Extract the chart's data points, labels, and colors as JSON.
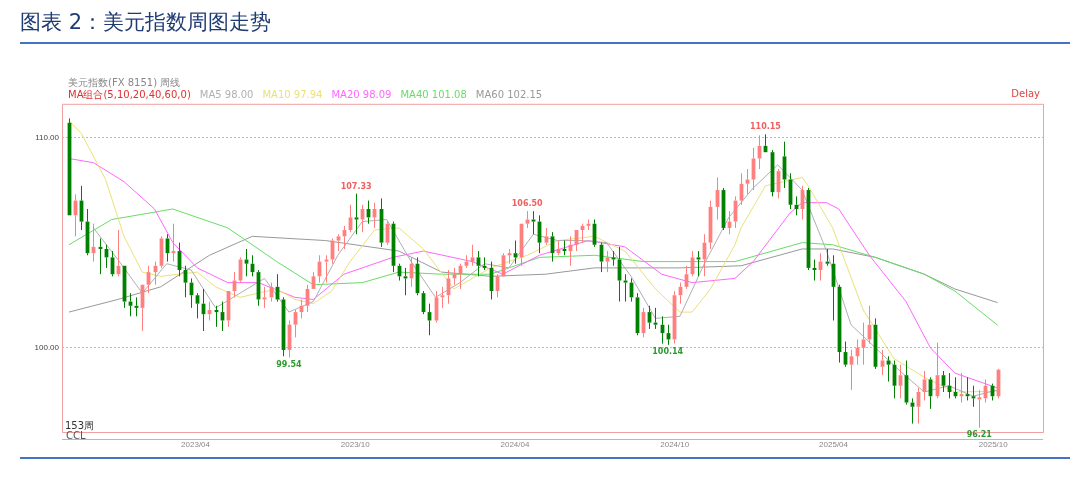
{
  "chart_data": {
    "type": "candlestick",
    "title": "图表 2：美元指数周图走势",
    "subtitle": "美元指数(FX 8151) 周线",
    "legend_title": "MA组合(5,10,20,40,60,0)",
    "x": [
      "2022-11-07",
      "2022-11-14",
      "2022-11-21",
      "2022-11-28",
      "2022-12-05",
      "2022-12-12",
      "2022-12-19",
      "2022-12-26",
      "2023-01-02",
      "2023-01-09",
      "2023-01-16",
      "2023-01-23",
      "2023-01-30",
      "2023-02-06",
      "2023-02-13",
      "2023-02-20",
      "2023-02-27",
      "2023-03-06",
      "2023-03-13",
      "2023-03-20",
      "2023-03-27",
      "2023-04-03",
      "2023-04-10",
      "2023-04-17",
      "2023-04-24",
      "2023-05-01",
      "2023-05-08",
      "2023-05-15",
      "2023-05-22",
      "2023-05-29",
      "2023-06-05",
      "2023-06-12",
      "2023-06-19",
      "2023-06-26",
      "2023-07-03",
      "2023-07-10",
      "2023-07-17",
      "2023-07-24",
      "2023-07-31",
      "2023-08-07",
      "2023-08-14",
      "2023-08-21",
      "2023-08-28",
      "2023-09-04",
      "2023-09-11",
      "2023-09-18",
      "2023-09-25",
      "2023-10-02",
      "2023-10-09",
      "2023-10-16",
      "2023-10-23",
      "2023-10-30",
      "2023-11-06",
      "2023-11-13",
      "2023-11-20",
      "2023-11-27",
      "2023-12-04",
      "2023-12-11",
      "2023-12-18",
      "2023-12-25",
      "2024-01-01",
      "2024-01-08",
      "2024-01-15",
      "2024-01-22",
      "2024-01-29",
      "2024-02-05",
      "2024-02-12",
      "2024-02-19",
      "2024-02-26",
      "2024-03-04",
      "2024-03-11",
      "2024-03-18",
      "2024-03-25",
      "2024-04-01",
      "2024-04-08",
      "2024-04-15",
      "2024-04-22",
      "2024-04-29",
      "2024-05-06",
      "2024-05-13",
      "2024-05-20",
      "2024-05-27",
      "2024-06-03",
      "2024-06-10",
      "2024-06-17",
      "2024-06-24",
      "2024-07-01",
      "2024-07-08",
      "2024-07-15",
      "2024-07-22",
      "2024-07-29",
      "2024-08-05",
      "2024-08-12",
      "2024-08-19",
      "2024-08-26",
      "2024-09-02",
      "2024-09-09",
      "2024-09-16",
      "2024-09-23",
      "2024-09-30",
      "2024-10-07",
      "2024-10-14",
      "2024-10-21",
      "2024-10-28",
      "2024-11-04",
      "2024-11-11",
      "2024-11-18",
      "2024-11-25",
      "2024-12-02",
      "2024-12-09",
      "2024-12-16",
      "2024-12-23",
      "2024-12-30",
      "2025-01-06",
      "2025-01-13",
      "2025-01-20",
      "2025-01-27",
      "2025-02-03",
      "2025-02-10",
      "2025-02-17",
      "2025-02-24",
      "2025-03-03",
      "2025-03-10",
      "2025-03-17",
      "2025-03-24",
      "2025-03-31",
      "2025-04-07",
      "2025-04-14",
      "2025-04-21",
      "2025-04-28",
      "2025-05-05",
      "2025-05-12",
      "2025-05-19",
      "2025-05-26",
      "2025-06-02",
      "2025-06-09",
      "2025-06-16",
      "2025-06-23",
      "2025-06-30",
      "2025-07-07",
      "2025-07-14",
      "2025-07-21",
      "2025-07-28",
      "2025-08-04",
      "2025-08-11",
      "2025-08-18",
      "2025-08-25",
      "2025-09-01",
      "2025-09-08",
      "2025-09-15",
      "2025-09-22",
      "2025-09-29",
      "2025-10-06"
    ],
    "ohlc": [
      [
        110.7,
        110.9,
        106.3,
        106.3
      ],
      [
        106.3,
        107.3,
        105.3,
        107.0
      ],
      [
        107.0,
        107.7,
        105.6,
        106.0
      ],
      [
        106.0,
        106.6,
        104.4,
        104.5
      ],
      [
        104.5,
        105.9,
        104.1,
        104.8
      ],
      [
        104.8,
        105.2,
        103.5,
        104.7
      ],
      [
        104.7,
        104.9,
        103.8,
        104.3
      ],
      [
        104.3,
        104.6,
        103.4,
        103.5
      ],
      [
        103.5,
        105.6,
        103.4,
        103.9
      ],
      [
        103.9,
        103.9,
        101.9,
        102.2
      ],
      [
        102.2,
        102.6,
        101.5,
        102.0
      ],
      [
        102.0,
        102.4,
        101.5,
        101.9
      ],
      [
        101.9,
        103.0,
        100.8,
        103.0
      ],
      [
        103.0,
        103.9,
        102.6,
        103.6
      ],
      [
        103.6,
        104.1,
        103.0,
        103.9
      ],
      [
        103.9,
        105.3,
        103.8,
        105.2
      ],
      [
        105.2,
        105.4,
        104.1,
        104.5
      ],
      [
        104.5,
        105.9,
        104.1,
        104.6
      ],
      [
        104.6,
        105.0,
        103.4,
        103.7
      ],
      [
        103.7,
        103.9,
        102.4,
        103.1
      ],
      [
        103.1,
        103.3,
        101.9,
        102.5
      ],
      [
        102.5,
        102.6,
        101.4,
        102.1
      ],
      [
        102.1,
        102.8,
        100.8,
        101.6
      ],
      [
        101.6,
        102.2,
        101.3,
        101.8
      ],
      [
        101.8,
        102.0,
        101.0,
        101.7
      ],
      [
        101.7,
        102.2,
        100.8,
        101.3
      ],
      [
        101.3,
        102.7,
        101.0,
        102.7
      ],
      [
        102.7,
        103.6,
        102.4,
        103.2
      ],
      [
        103.2,
        104.3,
        103.1,
        104.2
      ],
      [
        104.2,
        104.7,
        103.4,
        104.0
      ],
      [
        104.0,
        104.4,
        103.4,
        103.6
      ],
      [
        103.6,
        103.7,
        102.0,
        102.3
      ],
      [
        102.3,
        102.9,
        101.9,
        102.4
      ],
      [
        102.4,
        103.1,
        102.2,
        102.9
      ],
      [
        102.9,
        103.5,
        102.2,
        102.3
      ],
      [
        102.3,
        102.4,
        99.6,
        99.9
      ],
      [
        99.9,
        101.3,
        99.54,
        101.1
      ],
      [
        101.1,
        101.8,
        100.5,
        101.7
      ],
      [
        101.7,
        102.3,
        101.4,
        102.0
      ],
      [
        102.0,
        103.0,
        101.7,
        102.8
      ],
      [
        102.8,
        103.6,
        102.8,
        103.4
      ],
      [
        103.4,
        104.4,
        103.1,
        104.1
      ],
      [
        104.1,
        104.4,
        103.1,
        104.2
      ],
      [
        104.2,
        105.2,
        104.0,
        105.1
      ],
      [
        105.1,
        105.4,
        104.6,
        105.3
      ],
      [
        105.3,
        105.8,
        104.7,
        105.6
      ],
      [
        105.6,
        106.8,
        105.5,
        106.2
      ],
      [
        106.2,
        107.33,
        105.4,
        106.1
      ],
      [
        106.1,
        106.8,
        105.5,
        106.6
      ],
      [
        106.6,
        107.0,
        105.9,
        106.2
      ],
      [
        106.2,
        106.9,
        105.7,
        106.6
      ],
      [
        106.6,
        107.1,
        104.8,
        105.0
      ],
      [
        105.0,
        106.0,
        104.9,
        105.9
      ],
      [
        105.9,
        106.0,
        103.6,
        103.9
      ],
      [
        103.9,
        104.0,
        103.2,
        103.4
      ],
      [
        103.4,
        103.8,
        102.5,
        103.3
      ],
      [
        103.3,
        104.3,
        102.9,
        104.0
      ],
      [
        104.0,
        104.3,
        102.5,
        102.6
      ],
      [
        102.6,
        102.7,
        101.6,
        101.7
      ],
      [
        101.7,
        102.1,
        100.6,
        101.3
      ],
      [
        101.3,
        102.7,
        101.2,
        102.4
      ],
      [
        102.4,
        102.9,
        101.9,
        102.5
      ],
      [
        102.5,
        103.7,
        102.1,
        103.3
      ],
      [
        103.3,
        103.8,
        103.0,
        103.5
      ],
      [
        103.5,
        104.0,
        102.8,
        103.9
      ],
      [
        103.9,
        104.4,
        103.8,
        104.1
      ],
      [
        104.1,
        104.9,
        103.9,
        104.3
      ],
      [
        104.3,
        104.6,
        103.4,
        103.9
      ],
      [
        103.9,
        104.3,
        103.7,
        103.8
      ],
      [
        103.8,
        104.1,
        102.3,
        102.7
      ],
      [
        102.7,
        103.5,
        102.4,
        103.4
      ],
      [
        103.4,
        104.5,
        103.4,
        104.4
      ],
      [
        104.4,
        104.7,
        104.0,
        104.5
      ],
      [
        104.5,
        105.1,
        104.0,
        104.3
      ],
      [
        104.3,
        105.9,
        103.9,
        105.9
      ],
      [
        105.9,
        106.5,
        105.7,
        106.1
      ],
      [
        106.1,
        106.5,
        105.4,
        106.0
      ],
      [
        106.0,
        106.3,
        104.5,
        105.0
      ],
      [
        105.0,
        105.7,
        104.9,
        105.3
      ],
      [
        105.3,
        105.5,
        104.1,
        104.5
      ],
      [
        104.5,
        105.1,
        104.4,
        104.7
      ],
      [
        104.7,
        105.1,
        104.4,
        104.6
      ],
      [
        104.6,
        105.3,
        103.9,
        104.9
      ],
      [
        104.9,
        105.6,
        104.6,
        105.6
      ],
      [
        105.6,
        105.9,
        105.0,
        105.8
      ],
      [
        105.8,
        106.1,
        105.6,
        105.9
      ],
      [
        105.9,
        106.1,
        104.8,
        104.9
      ],
      [
        104.9,
        105.0,
        103.6,
        104.1
      ],
      [
        104.1,
        104.6,
        103.6,
        104.3
      ],
      [
        104.3,
        104.6,
        103.9,
        104.2
      ],
      [
        104.2,
        104.8,
        102.2,
        103.2
      ],
      [
        103.2,
        103.5,
        102.2,
        103.1
      ],
      [
        103.1,
        103.3,
        102.2,
        102.4
      ],
      [
        102.4,
        102.6,
        100.6,
        100.7
      ],
      [
        100.7,
        101.9,
        100.5,
        101.7
      ],
      [
        101.7,
        102.0,
        100.9,
        101.2
      ],
      [
        101.2,
        101.9,
        100.9,
        101.1
      ],
      [
        101.1,
        101.5,
        100.2,
        100.7
      ],
      [
        100.7,
        101.1,
        100.14,
        100.4
      ],
      [
        100.4,
        102.7,
        100.2,
        102.5
      ],
      [
        102.5,
        103.1,
        102.1,
        102.9
      ],
      [
        102.9,
        103.9,
        102.8,
        103.5
      ],
      [
        103.5,
        104.6,
        103.4,
        104.3
      ],
      [
        104.3,
        104.6,
        103.4,
        104.2
      ],
      [
        104.2,
        105.4,
        103.4,
        105.0
      ],
      [
        105.0,
        107.0,
        104.7,
        106.7
      ],
      [
        106.7,
        108.1,
        106.1,
        107.5
      ],
      [
        107.5,
        107.6,
        105.6,
        105.7
      ],
      [
        105.7,
        106.5,
        105.4,
        106.0
      ],
      [
        106.0,
        107.2,
        105.7,
        107.0
      ],
      [
        107.0,
        108.3,
        106.8,
        107.8
      ],
      [
        107.8,
        108.5,
        107.3,
        108.0
      ],
      [
        108.0,
        109.5,
        107.5,
        109.0
      ],
      [
        109.0,
        110.1,
        108.5,
        109.6
      ],
      [
        109.6,
        110.15,
        109.3,
        109.3
      ],
      [
        109.3,
        109.4,
        107.2,
        107.4
      ],
      [
        107.4,
        108.5,
        107.1,
        108.4
      ],
      [
        109.1,
        109.8,
        107.6,
        108.0
      ],
      [
        108.0,
        108.3,
        106.6,
        106.8
      ],
      [
        106.8,
        107.2,
        106.3,
        106.6
      ],
      [
        106.6,
        107.7,
        106.1,
        107.5
      ],
      [
        107.5,
        107.6,
        103.7,
        103.8
      ],
      [
        103.8,
        104.2,
        103.2,
        103.7
      ],
      [
        103.7,
        104.5,
        103.2,
        104.1
      ],
      [
        104.1,
        104.7,
        103.9,
        104.0
      ],
      [
        104.0,
        104.4,
        101.3,
        102.9
      ],
      [
        102.9,
        103.0,
        99.3,
        99.8
      ],
      [
        99.8,
        100.3,
        99.1,
        99.2
      ],
      [
        99.2,
        99.9,
        98.0,
        99.6
      ],
      [
        99.6,
        100.4,
        99.2,
        100.0
      ],
      [
        100.0,
        101.2,
        99.2,
        100.4
      ],
      [
        100.4,
        102.0,
        100.2,
        101.1
      ],
      [
        101.1,
        101.4,
        99.0,
        99.1
      ],
      [
        99.1,
        99.9,
        98.7,
        99.4
      ],
      [
        99.4,
        99.6,
        98.4,
        99.2
      ],
      [
        99.2,
        99.4,
        97.6,
        98.2
      ],
      [
        98.2,
        99.2,
        97.6,
        98.7
      ],
      [
        98.7,
        99.4,
        97.3,
        97.4
      ],
      [
        97.4,
        97.6,
        96.4,
        97.2
      ],
      [
        97.2,
        98.1,
        96.4,
        97.9
      ],
      [
        97.9,
        98.9,
        97.5,
        98.5
      ],
      [
        98.5,
        98.6,
        97.1,
        97.7
      ],
      [
        97.7,
        100.25,
        97.6,
        98.7
      ],
      [
        98.7,
        98.9,
        97.9,
        98.2
      ],
      [
        98.2,
        98.8,
        97.6,
        97.9
      ],
      [
        97.9,
        98.6,
        97.6,
        97.7
      ],
      [
        97.7,
        98.8,
        97.4,
        97.8
      ],
      [
        97.8,
        98.6,
        97.5,
        97.7
      ],
      [
        97.7,
        98.2,
        97.2,
        97.6
      ],
      [
        97.55,
        98.0,
        96.21,
        97.65
      ],
      [
        97.6,
        98.5,
        97.4,
        98.2
      ],
      [
        98.2,
        98.3,
        97.5,
        97.7
      ],
      [
        97.7,
        99.0,
        97.6,
        98.96
      ]
    ],
    "colors": [
      "#008000",
      "#ff7f7f",
      "#008000",
      "#008000",
      "#ff7f7f",
      "#008000",
      "#008000",
      "#008000",
      "#ff7f7f",
      "#008000",
      "#008000",
      "#008000",
      "#ff7f7f",
      "#ff7f7f",
      "#ff7f7f",
      "#ff7f7f",
      "#008000",
      "#ff7f7f",
      "#008000",
      "#008000",
      "#008000",
      "#008000",
      "#008000",
      "#ff7f7f",
      "#008000",
      "#008000",
      "#ff7f7f",
      "#ff7f7f",
      "#ff7f7f",
      "#008000",
      "#008000",
      "#008000",
      "#ff7f7f",
      "#ff7f7f",
      "#008000",
      "#008000",
      "#ff7f7f",
      "#ff7f7f",
      "#ff7f7f",
      "#ff7f7f",
      "#ff7f7f",
      "#ff7f7f",
      "#ff7f7f",
      "#ff7f7f",
      "#ff7f7f",
      "#ff7f7f",
      "#ff7f7f",
      "#008000",
      "#ff7f7f",
      "#008000",
      "#ff7f7f",
      "#008000",
      "#ff7f7f",
      "#008000",
      "#008000",
      "#008000",
      "#ff7f7f",
      "#008000",
      "#008000",
      "#008000",
      "#ff7f7f",
      "#ff7f7f",
      "#ff7f7f",
      "#ff7f7f",
      "#ff7f7f",
      "#ff7f7f",
      "#ff7f7f",
      "#008000",
      "#008000",
      "#008000",
      "#ff7f7f",
      "#ff7f7f",
      "#ff7f7f",
      "#008000",
      "#ff7f7f",
      "#ff7f7f",
      "#008000",
      "#008000",
      "#ff7f7f",
      "#008000",
      "#ff7f7f",
      "#008000",
      "#ff7f7f",
      "#ff7f7f",
      "#ff7f7f",
      "#ff7f7f",
      "#008000",
      "#008000",
      "#ff7f7f",
      "#008000",
      "#008000",
      "#008000",
      "#008000",
      "#008000",
      "#ff7f7f",
      "#008000",
      "#008000",
      "#008000",
      "#008000",
      "#ff7f7f",
      "#ff7f7f",
      "#ff7f7f",
      "#ff7f7f",
      "#008000",
      "#ff7f7f",
      "#ff7f7f",
      "#ff7f7f",
      "#008000",
      "#ff7f7f",
      "#ff7f7f",
      "#ff7f7f",
      "#ff7f7f",
      "#ff7f7f",
      "#ff7f7f",
      "#008000",
      "#008000",
      "#ff7f7f",
      "#008000",
      "#008000",
      "#008000",
      "#ff7f7f",
      "#008000",
      "#008000",
      "#ff7f7f",
      "#008000",
      "#008000",
      "#008000",
      "#008000",
      "#ff7f7f",
      "#ff7f7f",
      "#ff7f7f",
      "#ff7f7f",
      "#008000",
      "#ff7f7f",
      "#008000",
      "#008000",
      "#ff7f7f",
      "#008000",
      "#008000",
      "#ff7f7f",
      "#ff7f7f",
      "#008000",
      "#ff7f7f",
      "#008000",
      "#008000",
      "#008000",
      "#ff7f7f",
      "#008000",
      "#008000",
      "#ff7f7f",
      "#ff7f7f",
      "#008000",
      "#ff7f7f"
    ],
    "series": [
      {
        "type": "line",
        "name": "MA5 98.00",
        "color": "#b0b0b0",
        "x": [
          "2022-12-05",
          "2023-01-02",
          "2023-01-30",
          "2023-02-27",
          "2023-03-27",
          "2023-04-24",
          "2023-05-22",
          "2023-06-19",
          "2023-07-17",
          "2023-08-14",
          "2023-09-11",
          "2023-10-09",
          "2023-11-06",
          "2023-12-04",
          "2024-01-01",
          "2024-01-29",
          "2024-02-26",
          "2024-03-25",
          "2024-04-22",
          "2024-05-20",
          "2024-06-17",
          "2024-07-15",
          "2024-08-12",
          "2024-09-09",
          "2024-10-07",
          "2024-11-04",
          "2024-12-02",
          "2024-12-30",
          "2025-01-27",
          "2025-02-24",
          "2025-03-24",
          "2025-04-21",
          "2025-05-19",
          "2025-06-16",
          "2025-07-14",
          "2025-08-11",
          "2025-09-08",
          "2025-10-06"
        ],
        "values": [
          105.7,
          104.2,
          102.6,
          104.0,
          103.7,
          101.9,
          102.6,
          103.3,
          101.7,
          102.2,
          104.4,
          106.0,
          106.1,
          104.1,
          102.4,
          103.1,
          104.0,
          103.8,
          105.4,
          105.1,
          105.1,
          105.0,
          103.4,
          101.4,
          101.5,
          104.0,
          106.2,
          107.6,
          108.7,
          107.5,
          104.6,
          101.1,
          100.0,
          98.9,
          97.9,
          98.2,
          97.7,
          98.0
        ]
      },
      {
        "type": "line",
        "name": "MA10 97.94",
        "color": "#ebe07a",
        "x": [
          "2022-11-07",
          "2022-11-21",
          "2022-12-19",
          "2023-01-09",
          "2023-01-30",
          "2023-02-20",
          "2023-04-03",
          "2023-04-24",
          "2023-05-22",
          "2023-07-03",
          "2023-07-24",
          "2023-08-14",
          "2023-09-04",
          "2023-09-25",
          "2023-10-23",
          "2023-11-20",
          "2023-12-18",
          "2024-01-22",
          "2024-03-04",
          "2024-04-15",
          "2024-05-20",
          "2024-07-01",
          "2024-08-05",
          "2024-09-09",
          "2024-10-07",
          "2024-10-21",
          "2024-11-11",
          "2024-12-09",
          "2024-12-16",
          "2025-01-13",
          "2025-02-24",
          "2025-03-03",
          "2025-03-31",
          "2025-05-05",
          "2025-06-09",
          "2025-07-14",
          "2025-08-18",
          "2025-10-06"
        ],
        "values": [
          110.8,
          110.2,
          108.0,
          105.3,
          103.6,
          103.4,
          103.6,
          102.9,
          102.4,
          102.8,
          102.3,
          102.1,
          102.7,
          104.1,
          105.6,
          105.7,
          104.7,
          102.8,
          103.8,
          104.4,
          105.1,
          105.3,
          104.6,
          102.8,
          101.7,
          101.7,
          102.8,
          104.9,
          105.7,
          107.7,
          108.1,
          107.7,
          105.7,
          101.8,
          99.5,
          98.6,
          97.9,
          97.94
        ]
      },
      {
        "type": "line",
        "name": "MA20 98.09",
        "color": "#ff66ff",
        "x": [
          "2022-11-07",
          "2022-12-05",
          "2023-01-09",
          "2023-02-13",
          "2023-03-06",
          "2023-04-03",
          "2023-05-08",
          "2023-06-12",
          "2023-07-24",
          "2023-08-14",
          "2023-09-18",
          "2023-11-13",
          "2023-12-18",
          "2024-02-12",
          "2024-03-18",
          "2024-04-29",
          "2024-06-24",
          "2024-08-05",
          "2024-09-16",
          "2024-10-21",
          "2024-12-09",
          "2024-12-30",
          "2025-02-10",
          "2025-02-24",
          "2025-03-24",
          "2025-04-07",
          "2025-05-12",
          "2025-06-23",
          "2025-07-21",
          "2025-08-18",
          "2025-10-06"
        ],
        "values": [
          109.0,
          108.8,
          107.9,
          106.6,
          105.0,
          103.8,
          103.1,
          103.1,
          102.4,
          102.3,
          103.5,
          104.3,
          104.6,
          104.1,
          103.5,
          104.4,
          105.1,
          104.8,
          103.5,
          103.1,
          103.3,
          104.1,
          106.4,
          106.9,
          106.9,
          106.6,
          104.4,
          102.2,
          100.0,
          98.8,
          98.09
        ]
      },
      {
        "type": "line",
        "name": "MA40 101.08",
        "color": "#66dd66",
        "x": [
          "2022-11-07",
          "2022-12-26",
          "2023-03-06",
          "2023-05-08",
          "2023-07-03",
          "2023-08-14",
          "2023-10-09",
          "2023-11-20",
          "2024-01-08",
          "2024-03-04",
          "2024-04-29",
          "2024-07-01",
          "2024-08-26",
          "2024-12-09",
          "2025-02-24",
          "2025-03-31",
          "2025-05-19",
          "2025-07-14",
          "2025-08-18",
          "2025-10-06"
        ],
        "values": [
          104.9,
          106.1,
          106.6,
          105.7,
          104.1,
          103.0,
          103.1,
          103.6,
          103.5,
          103.5,
          104.3,
          104.4,
          104.1,
          104.1,
          105.0,
          104.9,
          104.3,
          103.5,
          102.7,
          101.08
        ]
      },
      {
        "type": "line",
        "name": "MA60 102.15",
        "color": "#999999",
        "x": [
          "2022-11-07",
          "2023-01-02",
          "2023-02-20",
          "2023-04-17",
          "2023-06-05",
          "2023-08-28",
          "2023-11-20",
          "2024-01-08",
          "2024-03-04",
          "2024-05-06",
          "2024-07-01",
          "2024-10-07",
          "2024-12-16",
          "2025-02-24",
          "2025-03-31",
          "2025-05-19",
          "2025-07-14",
          "2025-08-18",
          "2025-10-06"
        ],
        "values": [
          101.7,
          102.3,
          102.9,
          104.4,
          105.3,
          105.1,
          104.6,
          103.6,
          103.4,
          103.5,
          103.8,
          103.8,
          103.9,
          104.7,
          104.7,
          104.3,
          103.5,
          102.8,
          102.15
        ]
      }
    ],
    "xlim": [
      "2022-10-30",
      "2025-11-27"
    ],
    "xticks": [
      {
        "value": "2023-04-01",
        "label": "2023/04"
      },
      {
        "value": "2023-10-01",
        "label": "2023/10"
      },
      {
        "value": "2024-04-01",
        "label": "2024/04"
      },
      {
        "value": "2024-10-01",
        "label": "2024/10"
      },
      {
        "value": "2025-04-01",
        "label": "2025/04"
      },
      {
        "value": "2025-10-01",
        "label": "2025/10"
      }
    ],
    "ylim": [
      96,
      111.6
    ],
    "yticks": [
      {
        "value": 100,
        "label": "100.00"
      },
      {
        "value": 110,
        "label": "110.00"
      }
    ],
    "grid": "y",
    "legend": "top left",
    "marker": "none",
    "line_style": "solid",
    "annotations": [
      "Delay",
      "153周",
      "CCL",
      {
        "text": "107.33",
        "x": "2023-10-02",
        "y": 107.33
      },
      {
        "text": "99.54",
        "x": "2023-07-17",
        "y": 99.54
      },
      {
        "text": "106.50",
        "x": "2024-04-15",
        "y": 106.5
      },
      {
        "text": "100.14",
        "x": "2024-09-23",
        "y": 100.14
      },
      {
        "text": "110.15",
        "x": "2025-01-13",
        "y": 110.15
      },
      {
        "text": "96.21",
        "x": "2025-09-15",
        "y": 96.21
      }
    ]
  }
}
